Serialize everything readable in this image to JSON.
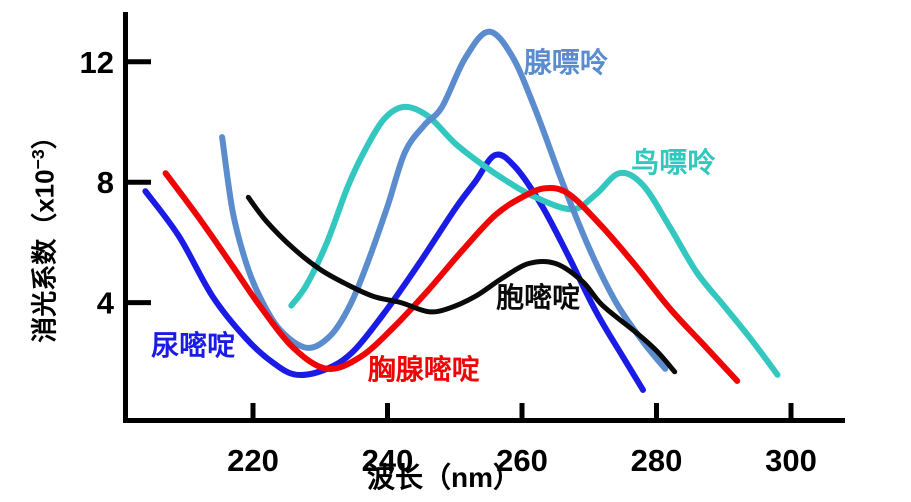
{
  "figure": {
    "background": "#ffffff",
    "axis_color": "#000000"
  },
  "chart_data": {
    "type": "line",
    "title": "",
    "xlabel": "波长（nm）",
    "ylabel": "消光系数（x10−3）",
    "ylabel_parts": {
      "prefix": "消光系数（x10",
      "sup": "−3",
      "suffix": "）"
    },
    "xlim": [
      201,
      308
    ],
    "ylim": [
      0,
      13.7
    ],
    "grid": false,
    "legend": "inline curve labels",
    "x_ticks": [
      {
        "value": 220,
        "label": "220"
      },
      {
        "value": 240,
        "label": "240"
      },
      {
        "value": 260,
        "label": "260"
      },
      {
        "value": 280,
        "label": "280"
      },
      {
        "value": 300,
        "label": "300"
      }
    ],
    "y_ticks": [
      {
        "value": 4,
        "label": "4"
      },
      {
        "value": 8,
        "label": "8"
      },
      {
        "value": 12,
        "label": "12"
      }
    ],
    "series": [
      {
        "name": "尿嘧啶",
        "name_en": "uracil",
        "color": "#1b1be6",
        "label_anchor": [
          211.1,
          2.62
        ],
        "points": [
          [
            204,
            7.7
          ],
          [
            209,
            6.2
          ],
          [
            214,
            4.2
          ],
          [
            219,
            2.8
          ],
          [
            223,
            2.0
          ],
          [
            226.5,
            1.6
          ],
          [
            231,
            1.8
          ],
          [
            235,
            2.4
          ],
          [
            240,
            3.8
          ],
          [
            245,
            5.4
          ],
          [
            250,
            7.1
          ],
          [
            253,
            8.0
          ],
          [
            256,
            8.9
          ],
          [
            259,
            8.5
          ],
          [
            263,
            7.2
          ],
          [
            267,
            5.5
          ],
          [
            271,
            3.7
          ],
          [
            275,
            2.2
          ],
          [
            278,
            1.1
          ]
        ]
      },
      {
        "name": "鸟嘌呤",
        "name_en": "guanine",
        "color": "#33c7c0",
        "label_anchor": [
          282.5,
          8.7
        ],
        "points": [
          [
            225.7,
            3.9
          ],
          [
            228,
            4.6
          ],
          [
            231,
            6.0
          ],
          [
            234,
            7.8
          ],
          [
            236.5,
            9.0
          ],
          [
            239.5,
            10.1
          ],
          [
            242.5,
            10.5
          ],
          [
            246,
            10.2
          ],
          [
            250,
            9.3
          ],
          [
            254,
            8.6
          ],
          [
            258,
            8.0
          ],
          [
            262,
            7.5
          ],
          [
            267.5,
            7.1
          ],
          [
            271,
            7.6
          ],
          [
            274.5,
            8.3
          ],
          [
            278,
            7.9
          ],
          [
            282,
            6.5
          ],
          [
            286,
            5.0
          ],
          [
            290,
            3.9
          ],
          [
            294,
            2.8
          ],
          [
            298,
            1.6
          ]
        ]
      },
      {
        "name": "腺嘌呤",
        "name_en": "adenine",
        "color": "#5b8cce",
        "label_anchor": [
          266.5,
          12.03
        ],
        "points": [
          [
            215.4,
            9.5
          ],
          [
            217,
            7.0
          ],
          [
            219,
            5.3
          ],
          [
            221,
            4.2
          ],
          [
            224,
            3.1
          ],
          [
            228,
            2.5
          ],
          [
            231.5,
            2.9
          ],
          [
            234.4,
            3.9
          ],
          [
            237,
            5.3
          ],
          [
            240,
            7.2
          ],
          [
            242.6,
            9.0
          ],
          [
            245.5,
            9.9
          ],
          [
            248.1,
            10.5
          ],
          [
            251.5,
            12.1
          ],
          [
            255,
            13.0
          ],
          [
            258.5,
            12.2
          ],
          [
            262,
            10.4
          ],
          [
            266,
            8.0
          ],
          [
            270,
            5.8
          ],
          [
            274,
            4.0
          ],
          [
            278,
            2.7
          ],
          [
            281.3,
            1.8
          ]
        ]
      },
      {
        "name": "胸腺嘧啶",
        "name_en": "thymine",
        "color": "#ee0606",
        "label_anchor": [
          245.4,
          1.83
        ],
        "points": [
          [
            207,
            8.3
          ],
          [
            212,
            6.8
          ],
          [
            217,
            5.2
          ],
          [
            221,
            3.9
          ],
          [
            226,
            2.5
          ],
          [
            231,
            1.8
          ],
          [
            236,
            2.2
          ],
          [
            241,
            3.2
          ],
          [
            246,
            4.4
          ],
          [
            251,
            5.7
          ],
          [
            256,
            6.9
          ],
          [
            260,
            7.5
          ],
          [
            263.5,
            7.8
          ],
          [
            267,
            7.6
          ],
          [
            272,
            6.5
          ],
          [
            277,
            5.2
          ],
          [
            282,
            3.8
          ],
          [
            287,
            2.6
          ],
          [
            292,
            1.4
          ]
        ]
      },
      {
        "name": "胞嘧啶",
        "name_en": "cytosine",
        "color": "#0a0a0a",
        "label_anchor": [
          262.4,
          4.22
        ],
        "points": [
          [
            219.3,
            7.5
          ],
          [
            222,
            6.7
          ],
          [
            226,
            5.8
          ],
          [
            230,
            5.1
          ],
          [
            234,
            4.6
          ],
          [
            238,
            4.2
          ],
          [
            242,
            4.0
          ],
          [
            246,
            3.7
          ],
          [
            249,
            3.8
          ],
          [
            253,
            4.2
          ],
          [
            257,
            4.8
          ],
          [
            261,
            5.3
          ],
          [
            265,
            5.3
          ],
          [
            269,
            4.7
          ],
          [
            272,
            3.9
          ],
          [
            277,
            3.0
          ],
          [
            280,
            2.4
          ],
          [
            282.7,
            1.7
          ]
        ]
      }
    ]
  }
}
